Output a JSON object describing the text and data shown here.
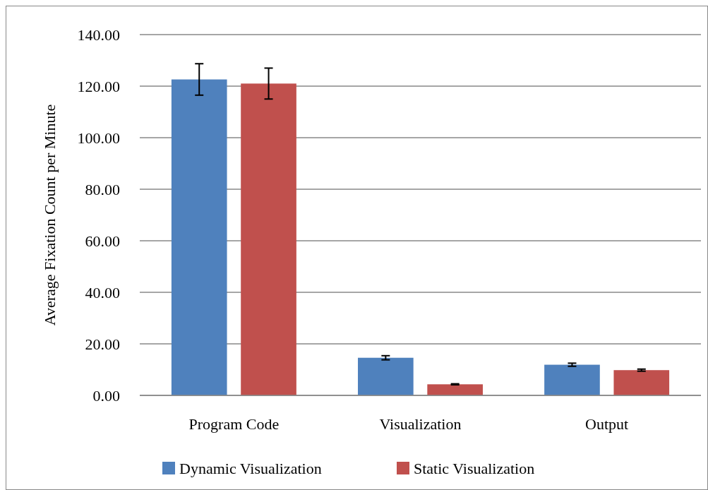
{
  "chart_data": {
    "type": "bar",
    "ylabel": "Average Fixation Count per Minute",
    "categories": [
      "Program Code",
      "Visualization",
      "Output"
    ],
    "series": [
      {
        "name": "Dynamic Visualization",
        "color": "#4f81bd",
        "values": [
          122.6,
          14.6,
          11.9
        ],
        "errors": [
          6.1,
          0.8,
          0.6
        ]
      },
      {
        "name": "Static Visualization",
        "color": "#c0504d",
        "values": [
          121.0,
          4.3,
          9.8
        ],
        "errors": [
          6.0,
          0.2,
          0.4
        ]
      }
    ],
    "ylim": [
      0,
      140
    ],
    "yticks": [
      {
        "value": 0,
        "label": "0.00"
      },
      {
        "value": 20,
        "label": "20.00"
      },
      {
        "value": 40,
        "label": "40.00"
      },
      {
        "value": 60,
        "label": "60.00"
      },
      {
        "value": 80,
        "label": "80.00"
      },
      {
        "value": 100,
        "label": "100.00"
      },
      {
        "value": 120,
        "label": "120.00"
      },
      {
        "value": 140,
        "label": "140.00"
      }
    ],
    "grid": "y",
    "legend": "bottom"
  }
}
